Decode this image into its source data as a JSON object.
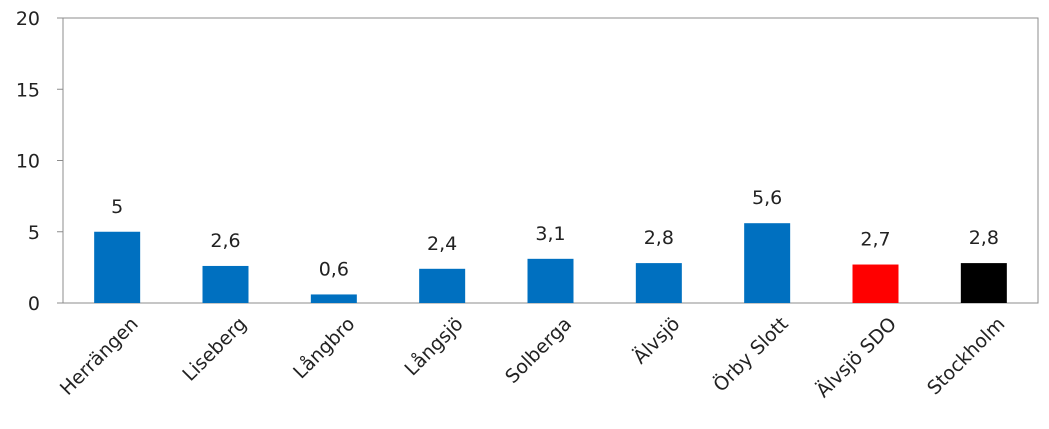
{
  "chart_data": {
    "type": "bar",
    "title": "",
    "xlabel": "",
    "ylabel": "",
    "ylim": [
      0,
      20
    ],
    "yticks": [
      "0",
      "5",
      "10",
      "15",
      "20"
    ],
    "grid": false,
    "categories": [
      "Herrängen",
      "Liseberg",
      "Långbro",
      "Långsjö",
      "Solberga",
      "Älvsjö",
      "Örby Slott",
      "Älvsjö SDO",
      "Stockholm"
    ],
    "values": [
      5,
      2.6,
      0.6,
      2.4,
      3.1,
      2.8,
      5.6,
      2.7,
      2.8
    ],
    "data_labels": [
      "5",
      "2,6",
      "0,6",
      "2,4",
      "3,1",
      "2,8",
      "5,6",
      "2,7",
      "2,8"
    ],
    "colors": [
      "#0070C0",
      "#0070C0",
      "#0070C0",
      "#0070C0",
      "#0070C0",
      "#0070C0",
      "#0070C0",
      "#FF0000",
      "#000000"
    ]
  }
}
